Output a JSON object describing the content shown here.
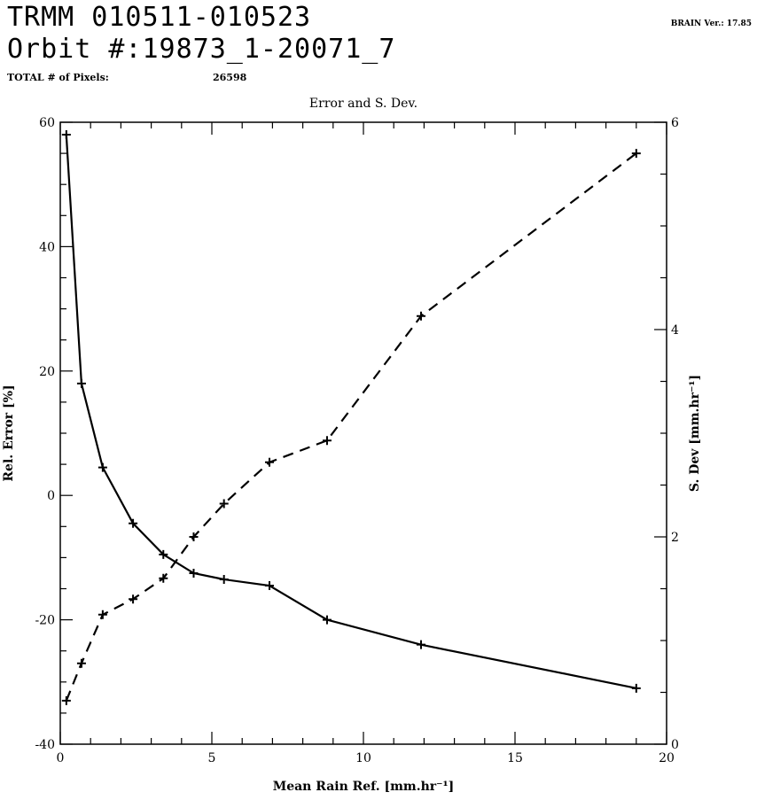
{
  "header": {
    "line1": "TRMM  010511-010523",
    "line2": "Orbit #:19873_1-20071_7",
    "pixels_label": "TOTAL # of Pixels:",
    "pixels_value": "26598",
    "version": "BRAIN Ver.: 17.85"
  },
  "chart_data": {
    "type": "line",
    "title": "Error and S. Dev.",
    "xlabel": "Mean Rain Ref. [mm.hr⁻¹]",
    "ylabel": "Rel. Error [%]",
    "y2label": "S. Dev [mm.hr⁻¹]",
    "xlim": [
      0,
      20
    ],
    "ylim": [
      -40,
      60
    ],
    "y2lim": [
      0,
      6
    ],
    "x_ticks": [
      "0",
      "5",
      "10",
      "15",
      "20"
    ],
    "y_ticks": [
      "-40",
      "-20",
      "0",
      "20",
      "40",
      "60"
    ],
    "y2_ticks": [
      "0",
      "2",
      "4",
      "6"
    ],
    "grid": false,
    "series": [
      {
        "axis": "left",
        "style": "solid",
        "x": [
          0.2,
          0.7,
          1.4,
          2.4,
          3.4,
          4.4,
          5.4,
          6.9,
          8.8,
          11.9,
          19.0
        ],
        "values": [
          58,
          18,
          4.5,
          -4.5,
          -9.5,
          -12.5,
          -13.5,
          -14.5,
          -20,
          -24,
          -31
        ]
      },
      {
        "axis": "right",
        "style": "dashed",
        "x": [
          0.2,
          0.7,
          1.4,
          2.4,
          3.4,
          4.4,
          5.4,
          6.9,
          8.8,
          11.9,
          19.0
        ],
        "values": [
          0.42,
          0.78,
          1.25,
          1.4,
          1.6,
          2.0,
          2.32,
          2.72,
          2.93,
          4.13,
          5.7
        ]
      }
    ]
  }
}
